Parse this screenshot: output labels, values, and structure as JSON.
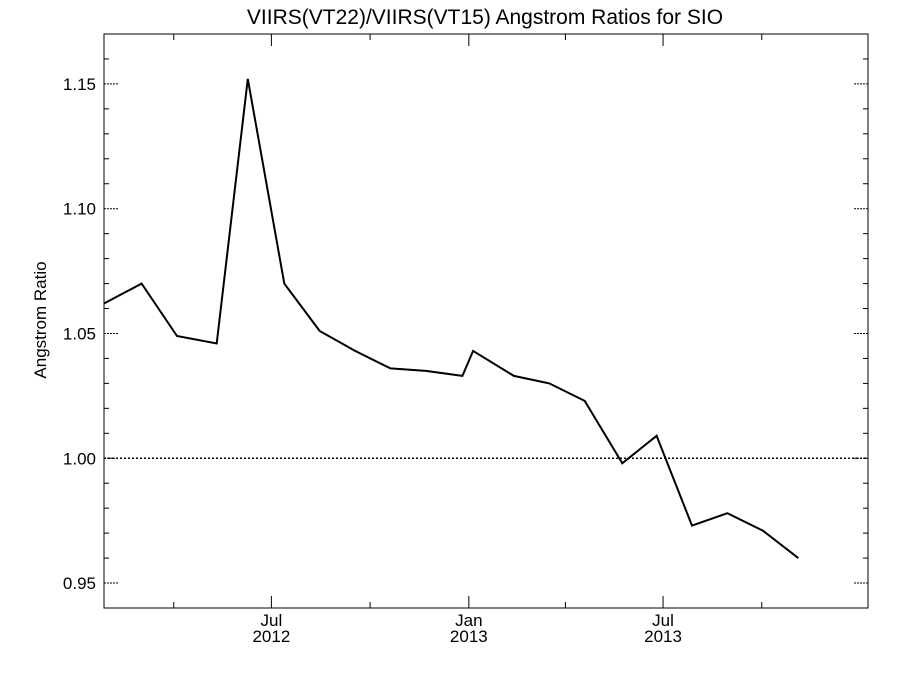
{
  "chart_data": {
    "type": "line",
    "title": "VIIRS(VT22)/VIIRS(VT15)  Angstrom Ratios for SIO",
    "xlabel": "",
    "ylabel": "Angstrom Ratio",
    "xlim": [
      "2012-01-27",
      "2014-01-08"
    ],
    "ylim": [
      0.94,
      1.17
    ],
    "grid": false,
    "reference_line": {
      "y": 1.0,
      "style": "dotted"
    },
    "y_ticks": [
      {
        "value": 0.95,
        "label": "0.95"
      },
      {
        "value": 1.0,
        "label": "1.00"
      },
      {
        "value": 1.05,
        "label": "1.05"
      },
      {
        "value": 1.1,
        "label": "1.10"
      },
      {
        "value": 1.15,
        "label": "1.15"
      }
    ],
    "y_minor_step": 0.01,
    "x_major_ticks": [
      {
        "date": "2012-07-01",
        "label_month": "Jul",
        "label_year": "2012"
      },
      {
        "date": "2013-01-01",
        "label_month": "Jan",
        "label_year": "2013"
      },
      {
        "date": "2013-07-01",
        "label_month": "Jul",
        "label_year": "2013"
      }
    ],
    "x_minor_ticks": [
      "2012-04-01",
      "2012-10-01",
      "2013-04-01",
      "2013-10-01"
    ],
    "series": [
      {
        "points": [
          {
            "x": "2012-01-27",
            "y": 1.062
          },
          {
            "x": "2012-03-02",
            "y": 1.07
          },
          {
            "x": "2012-04-04",
            "y": 1.049
          },
          {
            "x": "2012-05-11",
            "y": 1.046
          },
          {
            "x": "2012-06-09",
            "y": 1.152
          },
          {
            "x": "2012-07-13",
            "y": 1.07
          },
          {
            "x": "2012-08-15",
            "y": 1.051
          },
          {
            "x": "2012-09-17",
            "y": 1.043
          },
          {
            "x": "2012-10-20",
            "y": 1.036
          },
          {
            "x": "2012-11-22",
            "y": 1.035
          },
          {
            "x": "2012-12-26",
            "y": 1.033
          },
          {
            "x": "2013-01-05",
            "y": 1.043
          },
          {
            "x": "2013-02-12",
            "y": 1.033
          },
          {
            "x": "2013-03-17",
            "y": 1.03
          },
          {
            "x": "2013-04-19",
            "y": 1.023
          },
          {
            "x": "2013-05-24",
            "y": 0.998
          },
          {
            "x": "2013-06-25",
            "y": 1.009
          },
          {
            "x": "2013-07-28",
            "y": 0.973
          },
          {
            "x": "2013-08-30",
            "y": 0.978
          },
          {
            "x": "2013-10-02",
            "y": 0.971
          },
          {
            "x": "2013-11-04",
            "y": 0.96
          }
        ]
      }
    ]
  },
  "colors": {
    "line": "#000000",
    "axis": "#000000",
    "background": "#ffffff"
  }
}
